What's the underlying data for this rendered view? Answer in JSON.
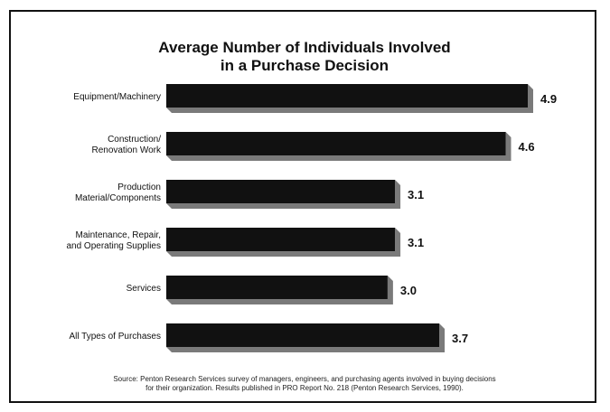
{
  "chart_data": {
    "type": "bar",
    "orientation": "horizontal",
    "title": [
      "Average Number of Individuals Involved",
      "in a Purchase Decision"
    ],
    "categories": [
      [
        "Equipment/Machinery"
      ],
      [
        "Construction/",
        "Renovation Work"
      ],
      [
        "Production",
        "Material/Components"
      ],
      [
        "Maintenance, Repair,",
        "and Operating Supplies"
      ],
      [
        "Services"
      ],
      [
        "All Types of Purchases"
      ]
    ],
    "values": [
      4.9,
      4.6,
      3.1,
      3.1,
      3.0,
      3.7
    ],
    "value_labels": [
      "4.9",
      "4.6",
      "3.1",
      "3.1",
      "3.0",
      "3.7"
    ],
    "xlim": [
      0,
      4.9
    ],
    "grid": false,
    "legend": "none",
    "colors": {
      "bar": "#111111",
      "shadow": "#7a7a7a",
      "text": "#111111"
    }
  },
  "source": [
    "Source:  Penton Research Services survey of managers, engineers, and purchasing agents involved in buying decisions",
    "for their organization. Results published in PRO Report No. 218 (Penton Research Services, 1990)."
  ]
}
